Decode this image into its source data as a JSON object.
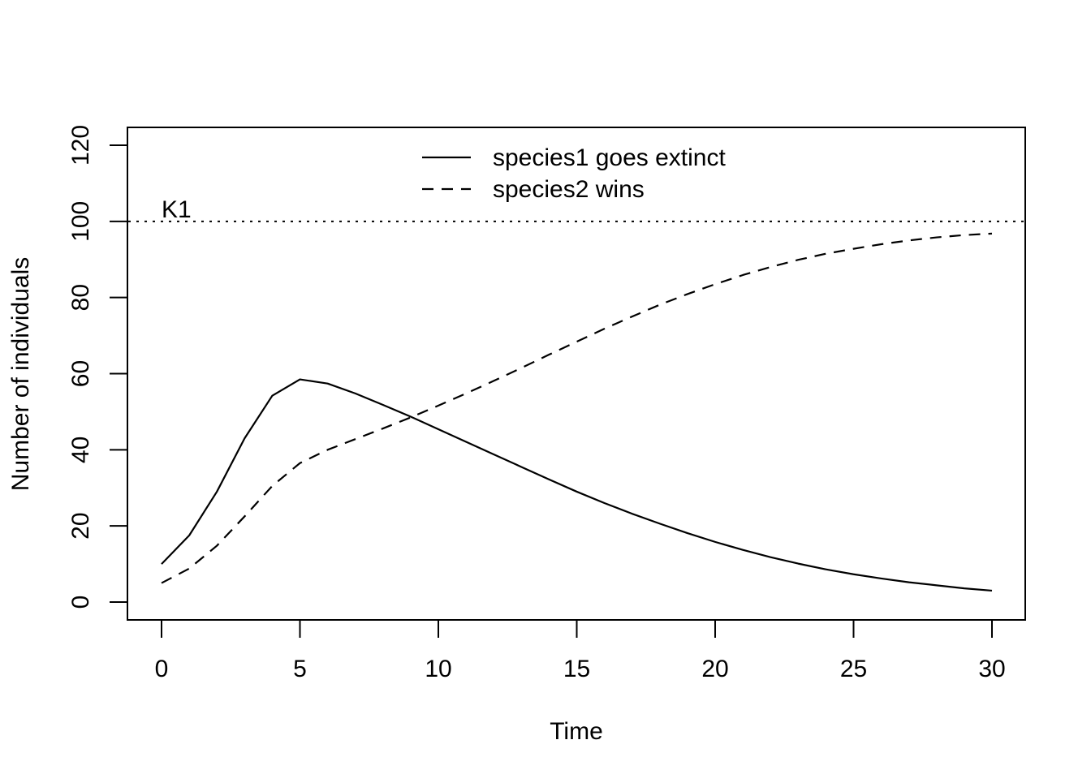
{
  "chart_data": {
    "type": "line",
    "title": "",
    "xlabel": "Time",
    "ylabel": "Number of individuals",
    "xlim": [
      0,
      30
    ],
    "ylim": [
      0,
      120
    ],
    "x_ticks": [
      0,
      5,
      10,
      15,
      20,
      25,
      30
    ],
    "y_ticks": [
      0,
      20,
      40,
      60,
      80,
      100,
      120
    ],
    "grid": false,
    "legend_position": "top-center",
    "x": [
      0,
      1,
      2,
      3,
      4,
      5,
      6,
      7,
      8,
      9,
      10,
      11,
      12,
      13,
      14,
      15,
      16,
      17,
      18,
      19,
      20,
      21,
      22,
      23,
      24,
      25,
      26,
      27,
      28,
      29,
      30
    ],
    "series": [
      {
        "name": "species1 goes extinct",
        "line_style": "solid",
        "color": "#000000",
        "values": [
          10,
          17.5,
          29,
          43,
          54.2,
          58.5,
          57.4,
          54.8,
          51.8,
          48.7,
          45.4,
          42.1,
          38.8,
          35.5,
          32.2,
          29.0,
          26.0,
          23.2,
          20.6,
          18.1,
          15.8,
          13.7,
          11.8,
          10.1,
          8.6,
          7.3,
          6.2,
          5.2,
          4.4,
          3.6,
          3.0
        ]
      },
      {
        "name": "species2 wins",
        "line_style": "dashed",
        "color": "#000000",
        "values": [
          5,
          8.8,
          14.8,
          22.5,
          30.5,
          36.5,
          40.0,
          42.8,
          45.6,
          48.5,
          51.6,
          54.8,
          58.1,
          61.5,
          65.0,
          68.4,
          71.8,
          75.0,
          78.1,
          80.9,
          83.5,
          85.9,
          88.0,
          89.9,
          91.5,
          92.8,
          94.0,
          95.0,
          95.8,
          96.4,
          96.8
        ]
      }
    ],
    "reference_lines": [
      {
        "y": 100,
        "label": "K1",
        "line_style": "dotted"
      }
    ]
  }
}
